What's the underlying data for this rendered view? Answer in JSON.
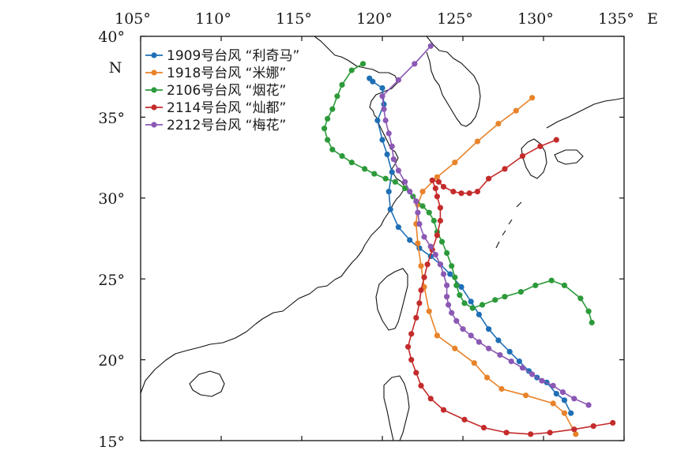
{
  "map": {
    "lon_range": [
      105,
      135
    ],
    "lat_range": [
      15,
      40
    ],
    "x_ticks": [
      105,
      110,
      115,
      120,
      125,
      130,
      135
    ],
    "y_ticks": [
      40,
      35,
      30,
      25,
      20,
      15
    ],
    "x_tick_labels": [
      "105°",
      "110°",
      "115°",
      "120°",
      "125°",
      "130°",
      "135°"
    ],
    "y_tick_labels": [
      "40°",
      "35°",
      "30°",
      "25°",
      "20°",
      "15°"
    ],
    "east_label": "E",
    "north_label": "N"
  },
  "tracks": [
    {
      "name": "1909号台风 “利奇马”",
      "color": "#1f6fb5",
      "points": [
        [
          131.7,
          16.7
        ],
        [
          131.3,
          17.5
        ],
        [
          130.8,
          17.9
        ],
        [
          130.2,
          18.6
        ],
        [
          129.6,
          18.9
        ],
        [
          129.1,
          19.3
        ],
        [
          128.5,
          19.9
        ],
        [
          127.9,
          20.5
        ],
        [
          127.2,
          21.2
        ],
        [
          126.6,
          21.9
        ],
        [
          126.0,
          22.8
        ],
        [
          125.5,
          23.6
        ],
        [
          124.9,
          24.5
        ],
        [
          124.2,
          25.3
        ],
        [
          123.6,
          25.9
        ],
        [
          123.0,
          26.4
        ],
        [
          122.3,
          26.9
        ],
        [
          121.7,
          27.4
        ],
        [
          121.0,
          28.2
        ],
        [
          120.5,
          29.3
        ],
        [
          120.4,
          30.4
        ],
        [
          120.6,
          31.6
        ],
        [
          120.3,
          32.7
        ],
        [
          120.0,
          33.6
        ],
        [
          119.7,
          34.8
        ],
        [
          120.1,
          35.8
        ],
        [
          120.0,
          36.8
        ],
        [
          119.4,
          37.2
        ],
        [
          119.2,
          37.4
        ]
      ]
    },
    {
      "name": "1918号台风 “米娜”",
      "color": "#e8832a",
      "points": [
        [
          132.0,
          15.4
        ],
        [
          131.3,
          16.7
        ],
        [
          130.6,
          17.3
        ],
        [
          128.9,
          17.8
        ],
        [
          127.4,
          18.2
        ],
        [
          126.5,
          18.9
        ],
        [
          125.7,
          19.8
        ],
        [
          124.5,
          20.7
        ],
        [
          123.4,
          21.5
        ],
        [
          122.9,
          23.0
        ],
        [
          122.6,
          24.5
        ],
        [
          122.4,
          25.8
        ],
        [
          122.2,
          27.2
        ],
        [
          122.1,
          28.4
        ],
        [
          122.2,
          29.6
        ],
        [
          122.5,
          30.4
        ],
        [
          123.4,
          31.3
        ],
        [
          124.5,
          32.2
        ],
        [
          125.9,
          33.5
        ],
        [
          127.2,
          34.6
        ],
        [
          128.3,
          35.4
        ],
        [
          129.3,
          36.2
        ]
      ]
    },
    {
      "name": "2106号台风 “烟花”",
      "color": "#2c9a3a",
      "points": [
        [
          133.0,
          22.3
        ],
        [
          132.8,
          23.0
        ],
        [
          132.3,
          23.8
        ],
        [
          131.3,
          24.6
        ],
        [
          130.5,
          24.9
        ],
        [
          129.5,
          24.6
        ],
        [
          128.6,
          24.2
        ],
        [
          127.6,
          23.9
        ],
        [
          127.0,
          23.7
        ],
        [
          126.2,
          23.4
        ],
        [
          125.6,
          23.2
        ],
        [
          125.1,
          23.5
        ],
        [
          124.8,
          24.0
        ],
        [
          124.6,
          24.6
        ],
        [
          124.5,
          25.1
        ],
        [
          124.3,
          25.8
        ],
        [
          124.0,
          26.6
        ],
        [
          123.7,
          27.3
        ],
        [
          123.4,
          27.9
        ],
        [
          123.2,
          28.6
        ],
        [
          122.9,
          29.1
        ],
        [
          122.5,
          29.5
        ],
        [
          121.9,
          30.1
        ],
        [
          121.4,
          30.6
        ],
        [
          120.8,
          31.0
        ],
        [
          120.2,
          31.2
        ],
        [
          119.5,
          31.5
        ],
        [
          118.9,
          31.8
        ],
        [
          118.1,
          32.2
        ],
        [
          117.5,
          32.6
        ],
        [
          116.9,
          33.0
        ],
        [
          116.6,
          33.6
        ],
        [
          116.4,
          34.3
        ],
        [
          116.6,
          34.9
        ],
        [
          116.9,
          35.5
        ],
        [
          117.2,
          36.3
        ],
        [
          117.5,
          37.0
        ],
        [
          118.1,
          37.9
        ],
        [
          118.8,
          38.3
        ]
      ]
    },
    {
      "name": "2114号台风 “灿都”",
      "color": "#c42b2b",
      "points": [
        [
          134.3,
          16.1
        ],
        [
          133.1,
          15.9
        ],
        [
          131.9,
          15.7
        ],
        [
          130.4,
          15.5
        ],
        [
          129.2,
          15.4
        ],
        [
          127.7,
          15.5
        ],
        [
          126.3,
          15.8
        ],
        [
          125.1,
          16.3
        ],
        [
          123.8,
          16.9
        ],
        [
          123.0,
          17.6
        ],
        [
          122.4,
          18.4
        ],
        [
          122.1,
          19.2
        ],
        [
          121.8,
          20.0
        ],
        [
          121.6,
          20.8
        ],
        [
          121.8,
          21.6
        ],
        [
          122.1,
          22.6
        ],
        [
          122.3,
          23.5
        ],
        [
          122.4,
          24.3
        ],
        [
          122.6,
          25.1
        ],
        [
          122.8,
          25.9
        ],
        [
          123.1,
          26.8
        ],
        [
          123.4,
          27.7
        ],
        [
          123.6,
          28.6
        ],
        [
          123.6,
          29.4
        ],
        [
          123.4,
          30.1
        ],
        [
          123.3,
          30.6
        ],
        [
          123.1,
          31.1
        ],
        [
          123.5,
          31.0
        ],
        [
          123.8,
          30.7
        ],
        [
          124.4,
          30.4
        ],
        [
          124.9,
          30.3
        ],
        [
          125.4,
          30.3
        ],
        [
          125.9,
          30.4
        ],
        [
          126.6,
          31.2
        ],
        [
          127.6,
          31.8
        ],
        [
          128.7,
          32.6
        ],
        [
          129.8,
          33.2
        ],
        [
          130.8,
          33.6
        ]
      ]
    },
    {
      "name": "2212号台风 “梅花”",
      "color": "#8b58b4",
      "points": [
        [
          132.8,
          17.2
        ],
        [
          131.9,
          17.6
        ],
        [
          131.2,
          18.0
        ],
        [
          130.6,
          18.4
        ],
        [
          129.9,
          18.7
        ],
        [
          129.3,
          19.1
        ],
        [
          128.7,
          19.5
        ],
        [
          128.0,
          19.9
        ],
        [
          127.3,
          20.3
        ],
        [
          126.6,
          20.7
        ],
        [
          126.0,
          21.1
        ],
        [
          125.5,
          21.5
        ],
        [
          125.0,
          21.9
        ],
        [
          124.6,
          22.4
        ],
        [
          124.3,
          22.9
        ],
        [
          124.1,
          23.4
        ],
        [
          124.0,
          23.9
        ],
        [
          124.0,
          24.6
        ],
        [
          123.8,
          25.3
        ],
        [
          123.6,
          25.9
        ],
        [
          123.3,
          26.5
        ],
        [
          123.0,
          27.0
        ],
        [
          122.6,
          27.6
        ],
        [
          122.3,
          28.4
        ],
        [
          122.2,
          29.1
        ],
        [
          122.1,
          29.8
        ],
        [
          121.7,
          30.4
        ],
        [
          121.4,
          31.0
        ],
        [
          121.0,
          31.7
        ],
        [
          120.7,
          32.4
        ],
        [
          120.6,
          33.2
        ],
        [
          120.4,
          34.0
        ],
        [
          120.2,
          34.8
        ],
        [
          120.1,
          35.5
        ],
        [
          120.0,
          36.3
        ],
        [
          121.0,
          37.3
        ],
        [
          122.0,
          38.3
        ],
        [
          123.0,
          39.4
        ]
      ]
    }
  ]
}
